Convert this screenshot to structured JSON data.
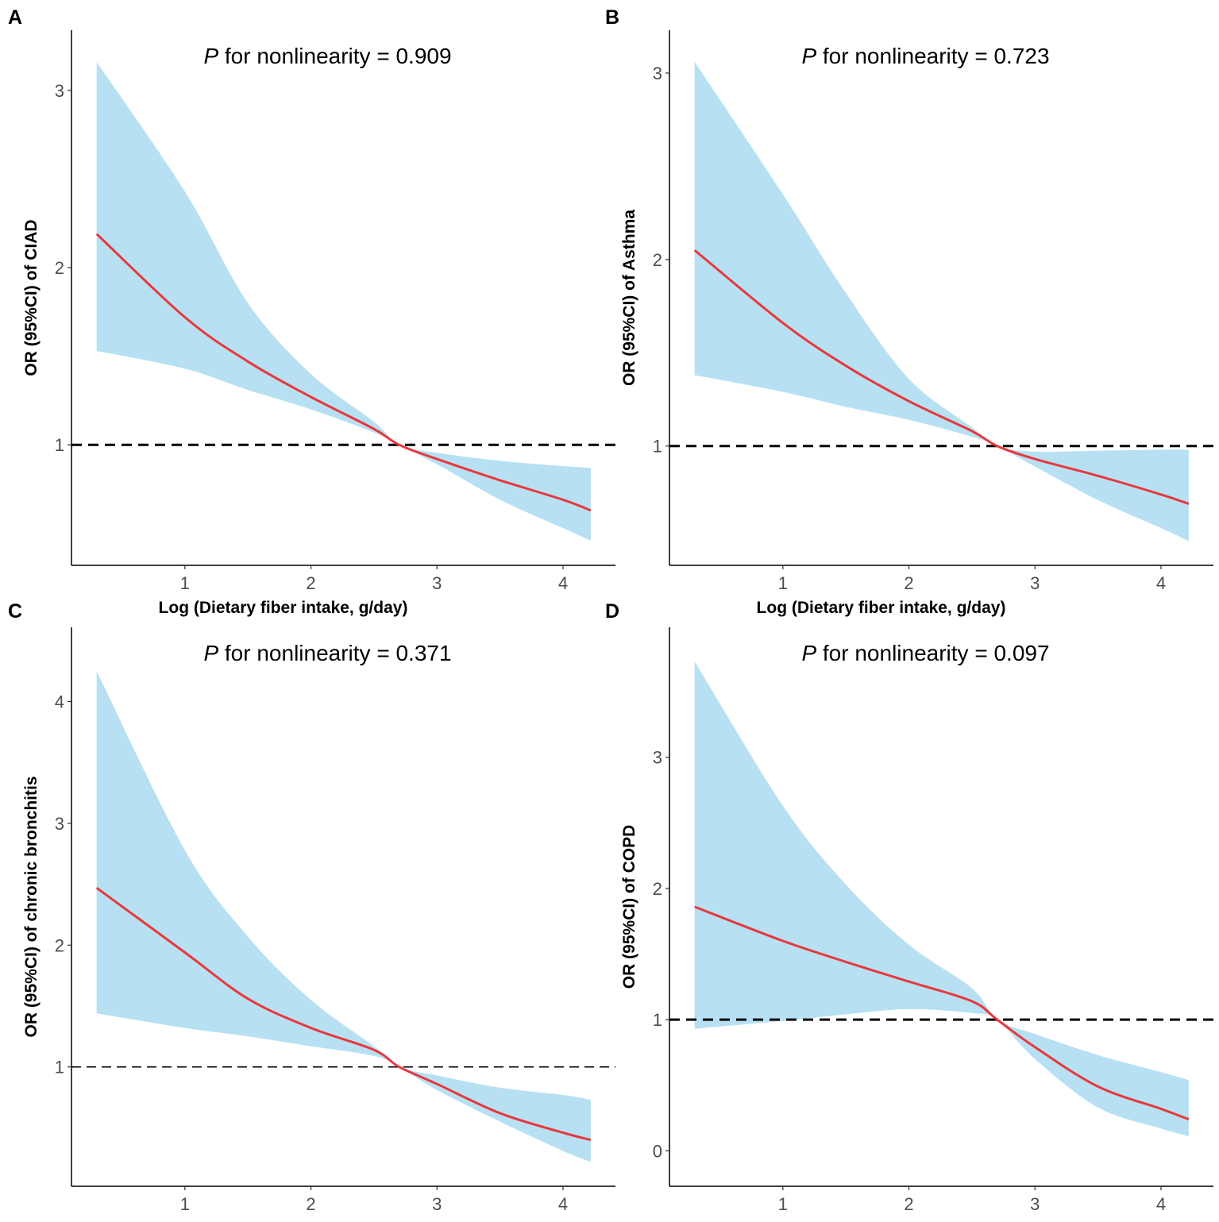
{
  "chart_data": [
    {
      "type": "line",
      "panel_label": "A",
      "title_p": "P",
      "title_rest": " for nonlinearity = 0.909",
      "xlabel": "Log (Dietary fiber intake, g/day)",
      "ylabel": "OR (95%CI) of CIAD",
      "xlim": [
        0.1,
        4.416
      ],
      "ylim": [
        0.32,
        3.34
      ],
      "xticks": [
        "1",
        "2",
        "3",
        "4"
      ],
      "yticks": [
        "1",
        "2",
        "3"
      ],
      "reference_line": 1,
      "x": [
        0.3,
        1,
        1.5,
        2,
        2.5,
        2.7,
        3,
        3.5,
        4,
        4.22
      ],
      "series": [
        {
          "name": "OR",
          "color": "#e8383d",
          "values": [
            2.19,
            1.72,
            1.47,
            1.27,
            1.09,
            1.0,
            0.92,
            0.8,
            0.69,
            0.63
          ]
        },
        {
          "name": "Upper 95% CI",
          "color": "#b7e1f2",
          "values": [
            3.16,
            2.43,
            1.8,
            1.4,
            1.13,
            1.0,
            0.955,
            0.91,
            0.88,
            0.87
          ]
        },
        {
          "name": "Lower 95% CI",
          "color": "#b7e1f2",
          "values": [
            1.53,
            1.43,
            1.31,
            1.2,
            1.07,
            1.0,
            0.89,
            0.69,
            0.53,
            0.46
          ]
        }
      ]
    },
    {
      "type": "line",
      "panel_label": "B",
      "title_p": "P",
      "title_rest": " for nonlinearity = 0.723",
      "xlabel": "Log (Dietary fiber intake, g/day)",
      "ylabel": "OR (95%CI) of Asthma",
      "xlim": [
        0.1,
        4.416
      ],
      "ylim": [
        0.36,
        3.23
      ],
      "xticks": [
        "1",
        "2",
        "3",
        "4"
      ],
      "yticks": [
        "1",
        "2",
        "3"
      ],
      "reference_line": 1,
      "x": [
        0.3,
        1,
        1.5,
        2,
        2.5,
        2.7,
        3,
        3.5,
        4,
        4.22
      ],
      "series": [
        {
          "name": "OR",
          "color": "#e8383d",
          "values": [
            2.05,
            1.66,
            1.43,
            1.24,
            1.08,
            1.0,
            0.93,
            0.84,
            0.74,
            0.69
          ]
        },
        {
          "name": "Upper 95% CI",
          "color": "#b7e1f2",
          "values": [
            3.06,
            2.35,
            1.82,
            1.36,
            1.1,
            1.0,
            0.97,
            0.975,
            0.98,
            0.98
          ]
        },
        {
          "name": "Lower 95% CI",
          "color": "#b7e1f2",
          "values": [
            1.38,
            1.29,
            1.21,
            1.14,
            1.05,
            1.0,
            0.89,
            0.71,
            0.56,
            0.49
          ]
        }
      ]
    },
    {
      "type": "line",
      "panel_label": "C",
      "title_p": "P",
      "title_rest": " for nonlinearity = 0.371",
      "xlabel": "Log (Dietary fiber intake, g/day)",
      "ylabel": "OR (95%CI) of chronic bronchitis",
      "xlim": [
        0.1,
        4.416
      ],
      "ylim": [
        0.02,
        4.61
      ],
      "xticks": [
        "1",
        "2",
        "3",
        "4"
      ],
      "yticks": [
        "1",
        "2",
        "3",
        "4"
      ],
      "reference_line": 1,
      "x": [
        0.3,
        1,
        1.5,
        2,
        2.5,
        2.7,
        3,
        3.5,
        4,
        4.22
      ],
      "series": [
        {
          "name": "OR",
          "color": "#e8383d",
          "values": [
            2.47,
            1.94,
            1.56,
            1.32,
            1.14,
            1.0,
            0.86,
            0.62,
            0.46,
            0.4
          ]
        },
        {
          "name": "Upper 95% CI",
          "color": "#b7e1f2",
          "values": [
            4.25,
            2.78,
            2.07,
            1.55,
            1.17,
            1.0,
            0.93,
            0.83,
            0.77,
            0.73
          ]
        },
        {
          "name": "Lower 95% CI",
          "color": "#b7e1f2",
          "values": [
            1.44,
            1.32,
            1.25,
            1.17,
            1.09,
            1.0,
            0.81,
            0.55,
            0.31,
            0.22
          ]
        }
      ]
    },
    {
      "type": "line",
      "panel_label": "D",
      "title_p": "P",
      "title_rest": " for nonlinearity = 0.097",
      "xlabel": "Log (Dietary fiber intake, g/day)",
      "ylabel": "OR (95%CI) of COPD",
      "xlim": [
        0.1,
        4.416
      ],
      "ylim": [
        -0.27,
        3.99
      ],
      "xticks": [
        "1",
        "2",
        "3",
        "4"
      ],
      "yticks": [
        "0",
        "1",
        "2",
        "3"
      ],
      "reference_line": 1,
      "x": [
        0.3,
        1,
        1.5,
        2,
        2.5,
        2.7,
        3,
        3.5,
        4,
        4.22
      ],
      "series": [
        {
          "name": "OR",
          "color": "#e8383d",
          "values": [
            1.86,
            1.6,
            1.44,
            1.29,
            1.14,
            1.0,
            0.79,
            0.49,
            0.32,
            0.24
          ]
        },
        {
          "name": "Upper 95% CI",
          "color": "#b7e1f2",
          "values": [
            3.73,
            2.63,
            2.03,
            1.57,
            1.24,
            1.0,
            0.89,
            0.73,
            0.6,
            0.54
          ]
        },
        {
          "name": "Lower 95% CI",
          "color": "#b7e1f2",
          "values": [
            0.93,
            0.99,
            1.04,
            1.08,
            1.05,
            1.0,
            0.7,
            0.33,
            0.17,
            0.11
          ]
        }
      ]
    }
  ]
}
